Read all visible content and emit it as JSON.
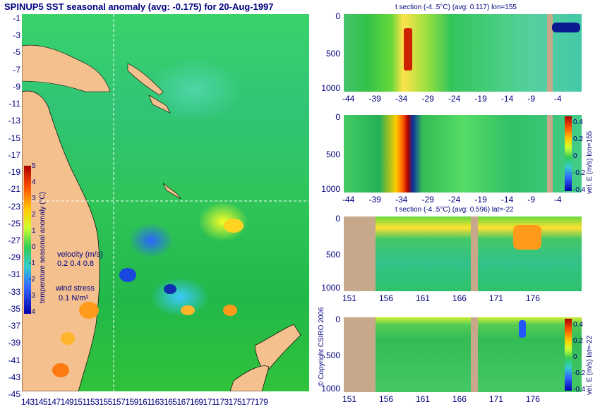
{
  "title": "SPINUP5 SST seasonal anomaly (avg: -0.175) for 20-Aug-1997",
  "map": {
    "lat_labels": [
      "-1",
      "-3",
      "-5",
      "-7",
      "-9",
      "-11",
      "-13",
      "-15",
      "-17",
      "-19",
      "-21",
      "-23",
      "-25",
      "-27",
      "-29",
      "-31",
      "-33",
      "-35",
      "-37",
      "-39",
      "-41",
      "-43",
      "-45"
    ],
    "lon_labels_text": "143145147149151153155157159161163165167169171173175177179",
    "colorbar": {
      "ticks": [
        "5",
        "4",
        "3",
        "2",
        "1",
        "0",
        "-1",
        "-2",
        "-3",
        "-4"
      ],
      "label": "temperature seasonal anomaly (°C)"
    },
    "velocity_key": {
      "label": "velocity (m/s)",
      "values": "0.2 0.4 0.8"
    },
    "wind_key": {
      "label": "wind stress",
      "value": "0.1 N/m²"
    }
  },
  "panels": [
    {
      "id": "t-section-lon",
      "title": "t section (-4..5°C) (avg: 0.117) lon=155",
      "yticks": [
        "0",
        "500",
        "1000"
      ],
      "xticks": [
        "-44",
        "-39",
        "-34",
        "-29",
        "-24",
        "-19",
        "-14",
        "-9",
        "-4"
      ]
    },
    {
      "id": "vel-e-lon",
      "title": "",
      "yticks": [
        "0",
        "500",
        "1000"
      ],
      "xticks": [
        "-44",
        "-39",
        "-34",
        "-29",
        "-24",
        "-19",
        "-14",
        "-9",
        "-4"
      ],
      "colorbar_label": "vel. E (m/s) lon=155",
      "colorbar_ticks": [
        "0.4",
        "0.2",
        "0",
        "-0.2",
        "-0.4"
      ]
    },
    {
      "id": "t-section-lat",
      "title": "t section (-4..5°C) (avg: 0.596) lat=-22",
      "yticks": [
        "0",
        "500",
        "1000"
      ],
      "xticks": [
        "151",
        "156",
        "161",
        "166",
        "171",
        "176"
      ]
    },
    {
      "id": "vel-e-lat",
      "title": "",
      "yticks": [
        "0",
        "500",
        "1000"
      ],
      "xticks": [
        "151",
        "156",
        "161",
        "166",
        "171",
        "176"
      ],
      "colorbar_label": "vel. E (m/s) lat=-22",
      "colorbar_ticks": [
        "0.4",
        "0.2",
        "0",
        "-0.2",
        "-0.4"
      ]
    }
  ],
  "copyright": "© Copyright CSIRO 2006"
}
